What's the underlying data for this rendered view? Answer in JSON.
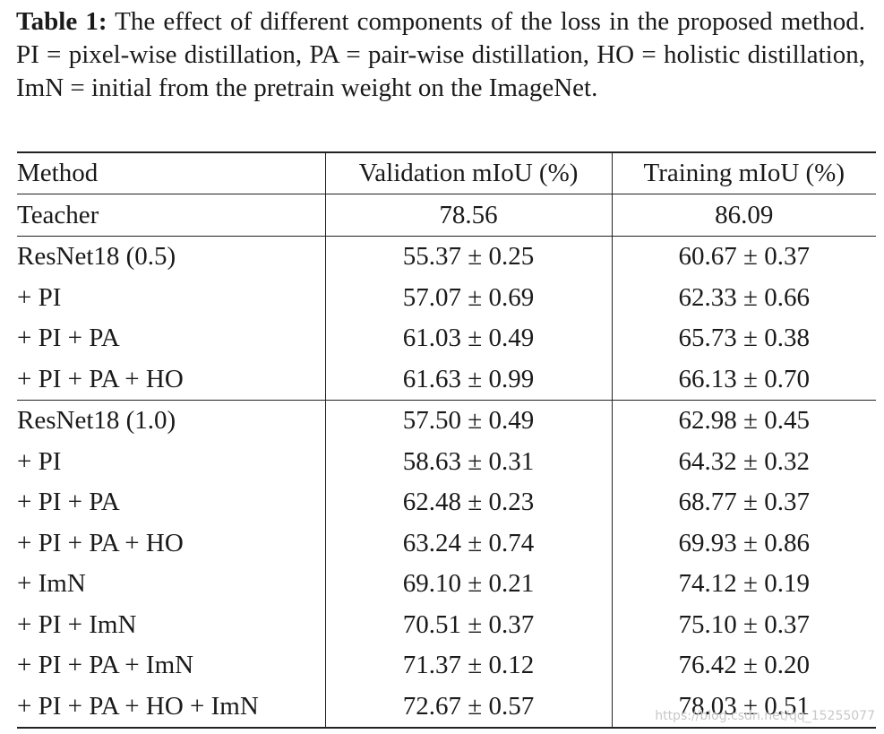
{
  "caption": {
    "label": "Table 1:",
    "text": "The effect of different components of the loss in the proposed method.  PI = pixel-wise distillation, PA = pair-wise distillation, HO = holistic distillation, ImN = initial from the pretrain weight on the ImageNet."
  },
  "table": {
    "headers": [
      "Method",
      "Validation mIoU (%)",
      "Training mIoU (%)"
    ],
    "teacher": {
      "method": "Teacher",
      "val": "78.56",
      "train": "86.09"
    },
    "group1": [
      {
        "method": "ResNet18 (0.5)",
        "val": "55.37 ± 0.25",
        "train": "60.67 ± 0.37"
      },
      {
        "method": "+ PI",
        "val": "57.07 ± 0.69",
        "train": "62.33 ± 0.66"
      },
      {
        "method": "+ PI + PA",
        "val": "61.03 ± 0.49",
        "train": "65.73 ± 0.38"
      },
      {
        "method": "+ PI + PA + HO",
        "val": "61.63 ± 0.99",
        "train": "66.13 ± 0.70"
      }
    ],
    "group2": [
      {
        "method": "ResNet18 (1.0)",
        "val": "57.50 ± 0.49",
        "train": "62.98 ± 0.45"
      },
      {
        "method": "+ PI",
        "val": "58.63 ± 0.31",
        "train": "64.32 ± 0.32"
      },
      {
        "method": "+ PI + PA",
        "val": "62.48 ± 0.23",
        "train": "68.77 ± 0.37"
      },
      {
        "method": "+ PI + PA + HO",
        "val": "63.24 ± 0.74",
        "train": "69.93 ± 0.86"
      },
      {
        "method": "+ ImN",
        "val": "69.10 ± 0.21",
        "train": "74.12 ± 0.19"
      },
      {
        "method": "+ PI + ImN",
        "val": "70.51 ± 0.37",
        "train": "75.10 ± 0.37"
      },
      {
        "method": "+ PI + PA + ImN",
        "val": "71.37 ± 0.12",
        "train": "76.42 ± 0.20"
      },
      {
        "method": "+ PI + PA + HO + ImN",
        "val": "72.67 ± 0.57",
        "train": "78.03 ± 0.51"
      }
    ]
  },
  "watermark": "https://blog.csdn.net/qq_15255077"
}
